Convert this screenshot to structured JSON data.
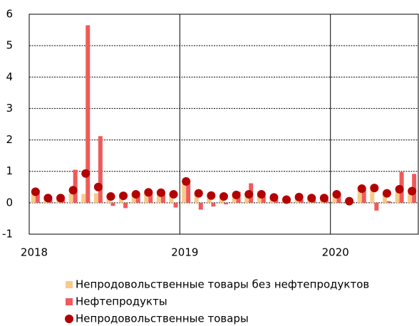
{
  "chart_data": {
    "type": "bar",
    "categories": [
      null,
      null,
      null,
      null,
      null,
      null,
      null,
      null,
      null,
      null,
      null,
      null,
      null,
      null,
      null,
      null,
      null,
      null,
      null,
      null,
      null,
      null,
      null,
      null,
      null,
      null,
      null,
      null,
      null,
      null,
      null
    ],
    "xticks": [
      {
        "value": 0,
        "label": "2018"
      },
      {
        "value": 12,
        "label": "2019"
      },
      {
        "value": 24,
        "label": "2020"
      }
    ],
    "ylim": [
      -1,
      6
    ],
    "yticks": [
      -1,
      0,
      1,
      2,
      3,
      4,
      5,
      6
    ],
    "grid": true,
    "series": [
      {
        "name": "Непродовольственные товары без нефтепродуктов",
        "type": "bar",
        "color": "#f9c98a",
        "values": [
          0.3,
          0.15,
          0.1,
          0.3,
          0.28,
          0.3,
          0.2,
          0.2,
          0.25,
          0.3,
          0.28,
          0.3,
          0.6,
          0.3,
          0.2,
          0.2,
          0.2,
          0.2,
          0.25,
          0.15,
          0.1,
          0.2,
          0.15,
          0.15,
          0.25,
          0.05,
          0.4,
          0.4,
          0.3,
          0.35,
          0.3
        ]
      },
      {
        "name": "Нефтепродукты",
        "type": "bar",
        "color": "#f05a5a",
        "values": [
          0.4,
          0.1,
          0.1,
          1.05,
          5.65,
          2.12,
          -0.1,
          -0.17,
          0.3,
          0.35,
          0.3,
          -0.15,
          0.7,
          -0.22,
          -0.12,
          -0.05,
          0.35,
          0.62,
          0.2,
          0.1,
          0.05,
          0.1,
          0.1,
          0.1,
          0.3,
          0.02,
          0.45,
          -0.25,
          0.05,
          0.98,
          0.92
        ]
      },
      {
        "name": "Непродовольственные товары",
        "type": "scatter",
        "color": "#b30000",
        "values": [
          0.35,
          0.15,
          0.15,
          0.4,
          0.93,
          0.5,
          0.2,
          0.22,
          0.27,
          0.33,
          0.32,
          0.27,
          0.68,
          0.3,
          0.23,
          0.2,
          0.25,
          0.27,
          0.27,
          0.17,
          0.1,
          0.18,
          0.15,
          0.15,
          0.27,
          0.05,
          0.45,
          0.47,
          0.3,
          0.43,
          0.37
        ]
      }
    ]
  }
}
